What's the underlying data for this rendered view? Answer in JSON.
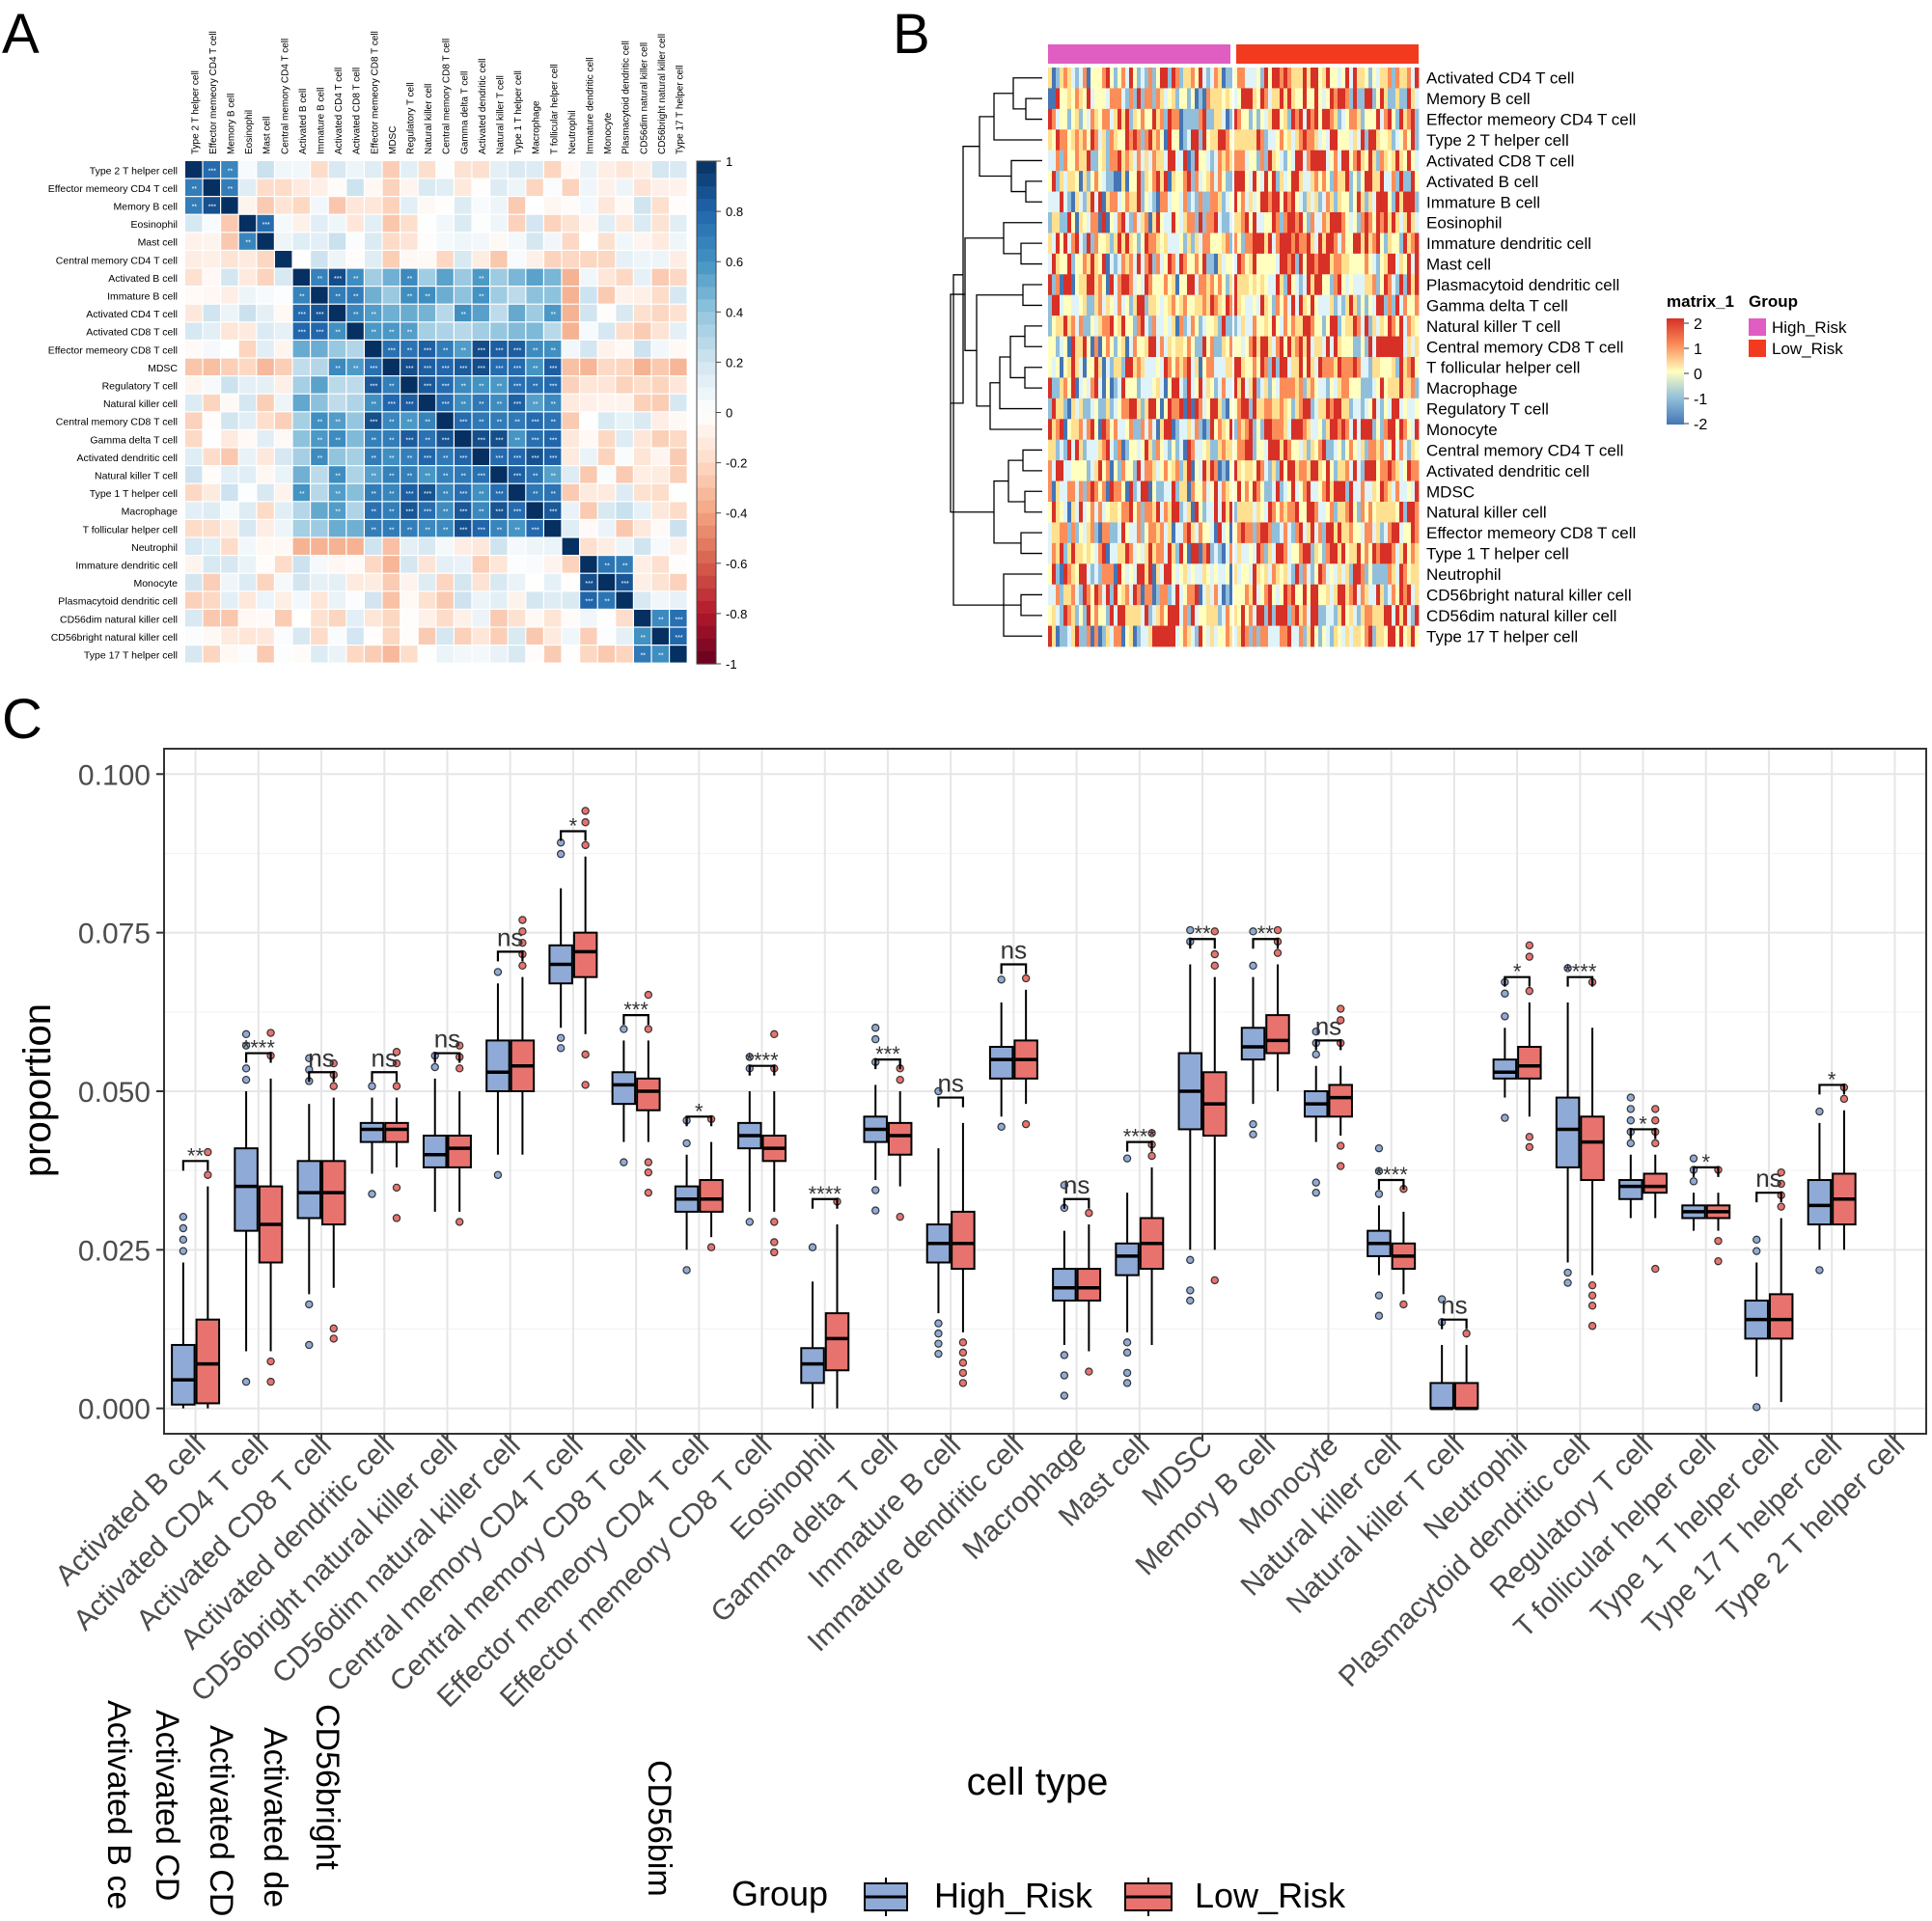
{
  "panel_labels": {
    "a": "A",
    "b": "B",
    "c": "C"
  },
  "colors": {
    "high_risk_box": "#8faad6",
    "low_risk_box": "#e8736e",
    "high_risk_bar": "#e05ec1",
    "low_risk_bar": "#f23a1f",
    "corr_pos": "#0b4a8a",
    "corr_neg": "#a5131f"
  },
  "chart_data": [
    {
      "type": "heatmap",
      "panel": "A",
      "title": "",
      "cells": [
        "Type 2 T helper cell",
        "Effector memeory CD4 T cell",
        "Memory B cell",
        "Eosinophil",
        "Mast cell",
        "Central memory CD4 T cell",
        "Activated B cell",
        "Immature  B cell",
        "Activated CD4 T cell",
        "Activated CD8 T cell",
        "Effector memeory CD8 T cell",
        "MDSC",
        "Regulatory T cell",
        "Natural killer cell",
        "Central memory CD8 T cell",
        "Gamma delta T cell",
        "Activated dendritic cell",
        "Natural killer T cell",
        "Type 1 T helper cell",
        "Macrophage",
        "T follicular helper cell",
        "Neutrophil",
        "Immature dendritic cell",
        "Monocyte",
        "Plasmacytoid dendritic cell",
        "CD56dim natural killer cell",
        "CD56bright natural killer cell",
        "Type 17 T helper cell"
      ],
      "clusters": [
        [
          0,
          2
        ],
        [
          3,
          4
        ],
        [
          5,
          5
        ],
        [
          6,
          9
        ],
        [
          10,
          20
        ],
        [
          21,
          21
        ],
        [
          22,
          24
        ],
        [
          25,
          27
        ]
      ],
      "colorbar": {
        "range": [
          -1,
          1
        ],
        "ticks": [
          "1",
          "0.8",
          "0.6",
          "0.4",
          "0.2",
          "0",
          "-0.2",
          "-0.4",
          "-0.6",
          "-0.8",
          "-1"
        ]
      }
    },
    {
      "type": "heatmap",
      "panel": "B",
      "rows": [
        "Activated CD4 T cell",
        "Memory B cell",
        "Effector memeory CD4 T cell",
        "Type 2 T helper cell",
        "Activated CD8 T cell",
        "Activated B cell",
        "Immature  B cell",
        "Eosinophil",
        "Immature dendritic cell",
        "Mast cell",
        "Plasmacytoid dendritic cell",
        "Gamma delta T cell",
        "Natural killer T cell",
        "Central memory CD8 T cell",
        "T follicular helper cell",
        "Macrophage",
        "Regulatory T cell",
        "Monocyte",
        "Central memory CD4 T cell",
        "Activated dendritic cell",
        "MDSC",
        "Natural killer cell",
        "Effector memeory CD8 T cell",
        "Type 1 T helper cell",
        "Neutrophil",
        "CD56bright natural killer cell",
        "CD56dim natural killer cell",
        "Type 17 T helper cell"
      ],
      "legend_scale_title": "matrix_1",
      "legend_scale_ticks": [
        "2",
        "1",
        "0",
        "-1",
        "-2"
      ],
      "legend_group_title": "Group",
      "groups": [
        "High_Risk",
        "Low_Risk"
      ]
    },
    {
      "type": "box",
      "panel": "C",
      "xlabel": "cell type",
      "ylabel": "proportion",
      "ylim": [
        -0.004,
        0.104
      ],
      "yticks": [
        "0.000",
        "0.025",
        "0.050",
        "0.075",
        "0.100"
      ],
      "legend_title": "Group",
      "series": [
        "High_Risk",
        "Low_Risk"
      ],
      "categories": [
        "Activated B cell",
        "Activated CD4 T cell",
        "Activated CD8 T cell",
        "Activated dendritic cell",
        "CD56bright natural killer cell",
        "CD56dim natural killer cell",
        "Central memory CD4 T cell",
        "Central memory CD8 T cell",
        "Effector memeory CD4 T cell",
        "Effector memeory CD8 T cell",
        "Eosinophil",
        "Gamma delta T cell",
        "Immature  B cell",
        "Immature dendritic cell",
        "Macrophage",
        "Mast cell",
        "MDSC",
        "Memory B cell",
        "Monocyte",
        "Natural killer cell",
        "Natural killer T cell",
        "Neutrophil",
        "Plasmacytoid dendritic cell",
        "Regulatory T cell",
        "T follicular helper cell",
        "Type 1 T helper cell",
        "Type 17 T helper cell",
        "Type 2 T helper cell"
      ],
      "significance": [
        "**",
        "****",
        "ns",
        "ns",
        "ns",
        "ns",
        "*",
        "***",
        "*",
        "****",
        "****",
        "***",
        "ns",
        "ns",
        "ns",
        "****",
        "**",
        "**",
        "ns",
        "****",
        "ns",
        "*",
        "****",
        "*",
        "*",
        "ns",
        "*",
        ""
      ],
      "high_risk": [
        [
          0,
          0.0006,
          0.0045,
          0.01,
          0.023
        ],
        [
          0.009,
          0.028,
          0.035,
          0.041,
          0.05
        ],
        [
          0.018,
          0.03,
          0.034,
          0.039,
          0.048
        ],
        [
          0.037,
          0.042,
          0.044,
          0.045,
          0.049
        ],
        [
          0.031,
          0.038,
          0.04,
          0.043,
          0.052
        ],
        [
          0.04,
          0.05,
          0.053,
          0.058,
          0.067
        ],
        [
          0.06,
          0.067,
          0.07,
          0.073,
          0.082
        ],
        [
          0.042,
          0.048,
          0.051,
          0.053,
          0.058
        ],
        [
          0.025,
          0.031,
          0.033,
          0.035,
          0.04
        ],
        [
          0.031,
          0.041,
          0.043,
          0.045,
          0.05
        ],
        [
          0,
          0.004,
          0.007,
          0.0095,
          0.02
        ],
        [
          0.036,
          0.042,
          0.044,
          0.046,
          0.051
        ],
        [
          0.015,
          0.023,
          0.026,
          0.029,
          0.041
        ],
        [
          0.046,
          0.052,
          0.055,
          0.057,
          0.064
        ],
        [
          0.01,
          0.017,
          0.019,
          0.022,
          0.028
        ],
        [
          0.012,
          0.021,
          0.024,
          0.026,
          0.034
        ],
        [
          0.025,
          0.044,
          0.05,
          0.056,
          0.07
        ],
        [
          0.048,
          0.055,
          0.057,
          0.06,
          0.068
        ],
        [
          0.042,
          0.046,
          0.048,
          0.05,
          0.054
        ],
        [
          0.021,
          0.024,
          0.026,
          0.028,
          0.032
        ],
        [
          0,
          0,
          0,
          0.004,
          0.01
        ],
        [
          0.049,
          0.052,
          0.053,
          0.055,
          0.06
        ],
        [
          0.023,
          0.038,
          0.044,
          0.049,
          0.064
        ],
        [
          0.03,
          0.033,
          0.035,
          0.036,
          0.04
        ],
        [
          0.028,
          0.03,
          0.031,
          0.032,
          0.034
        ],
        [
          0.005,
          0.011,
          0.014,
          0.017,
          0.023
        ],
        [
          0.025,
          0.029,
          0.032,
          0.036,
          0.045
        ],
        [
          0,
          0,
          0,
          0,
          0
        ]
      ],
      "low_risk": [
        [
          0,
          0.0008,
          0.007,
          0.014,
          0.035
        ],
        [
          0.009,
          0.023,
          0.029,
          0.035,
          0.052
        ],
        [
          0.019,
          0.029,
          0.034,
          0.039,
          0.049
        ],
        [
          0.038,
          0.042,
          0.044,
          0.045,
          0.049
        ],
        [
          0.031,
          0.038,
          0.041,
          0.043,
          0.05
        ],
        [
          0.04,
          0.05,
          0.054,
          0.058,
          0.068
        ],
        [
          0.059,
          0.068,
          0.072,
          0.075,
          0.087
        ],
        [
          0.042,
          0.047,
          0.05,
          0.052,
          0.058
        ],
        [
          0.027,
          0.031,
          0.033,
          0.036,
          0.042
        ],
        [
          0.031,
          0.039,
          0.041,
          0.043,
          0.05
        ],
        [
          0,
          0.006,
          0.011,
          0.015,
          0.029
        ],
        [
          0.035,
          0.04,
          0.043,
          0.045,
          0.05
        ],
        [
          0.012,
          0.022,
          0.026,
          0.031,
          0.045
        ],
        [
          0.048,
          0.052,
          0.055,
          0.058,
          0.066
        ],
        [
          0.009,
          0.017,
          0.019,
          0.022,
          0.029
        ],
        [
          0.01,
          0.022,
          0.026,
          0.03,
          0.038
        ],
        [
          0.025,
          0.043,
          0.048,
          0.053,
          0.068
        ],
        [
          0.05,
          0.056,
          0.058,
          0.062,
          0.07
        ],
        [
          0.043,
          0.046,
          0.049,
          0.051,
          0.054
        ],
        [
          0.018,
          0.022,
          0.024,
          0.026,
          0.031
        ],
        [
          0,
          0,
          0,
          0.004,
          0.01
        ],
        [
          0.046,
          0.052,
          0.054,
          0.057,
          0.064
        ],
        [
          0.021,
          0.036,
          0.042,
          0.046,
          0.06
        ],
        [
          0.03,
          0.034,
          0.035,
          0.037,
          0.04
        ],
        [
          0.028,
          0.03,
          0.031,
          0.032,
          0.034
        ],
        [
          0.001,
          0.011,
          0.014,
          0.018,
          0.03
        ],
        [
          0.025,
          0.029,
          0.033,
          0.037,
          0.047
        ],
        [
          0,
          0,
          0,
          0,
          0
        ]
      ]
    }
  ],
  "overflow_labels": [
    "Activated B ce",
    "Activated CD",
    "Activated CD",
    "Activated de",
    "CD56bright",
    "CD56bim"
  ]
}
